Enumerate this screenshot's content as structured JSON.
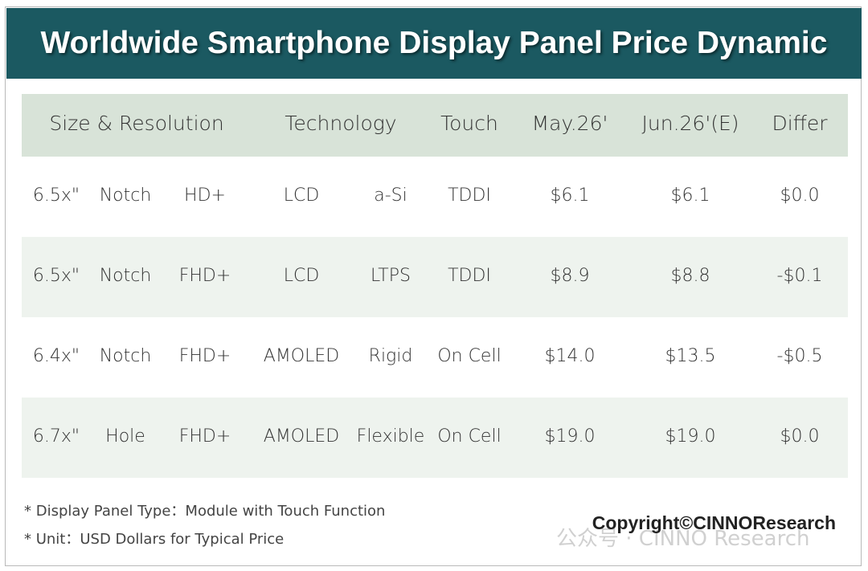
{
  "header": {
    "title": "Worldwide Smartphone Display Panel Price Dynamic"
  },
  "table": {
    "headers": [
      "Size & Resolution",
      "Technology",
      "Touch",
      "May.26'",
      "Jun.26'(E)",
      "Differ"
    ],
    "rows": [
      [
        "6.5x\"",
        "Notch",
        "HD+",
        "LCD",
        "a-Si",
        "TDDI",
        "$6.1",
        "$6.1",
        "$0.0"
      ],
      [
        "6.5x\"",
        "Notch",
        "FHD+",
        "LCD",
        "LTPS",
        "TDDI",
        "$8.9",
        "$8.8",
        "-$0.1"
      ],
      [
        "6.4x\"",
        "Notch",
        "FHD+",
        "AMOLED",
        "Rigid",
        "On Cell",
        "$14.0",
        "$13.5",
        "-$0.5"
      ],
      [
        "6.7x\"",
        "Hole",
        "FHD+",
        "AMOLED",
        "Flexible",
        "On Cell",
        "$19.0",
        "$19.0",
        "$0.0"
      ]
    ]
  },
  "notes": [
    "* Display Panel Type：Module with Touch Function",
    "* Unit：USD Dollars for Typical Price"
  ],
  "copyright": "Copyright©CINNOResearch",
  "watermark": "公众号 · CINNO Research"
}
